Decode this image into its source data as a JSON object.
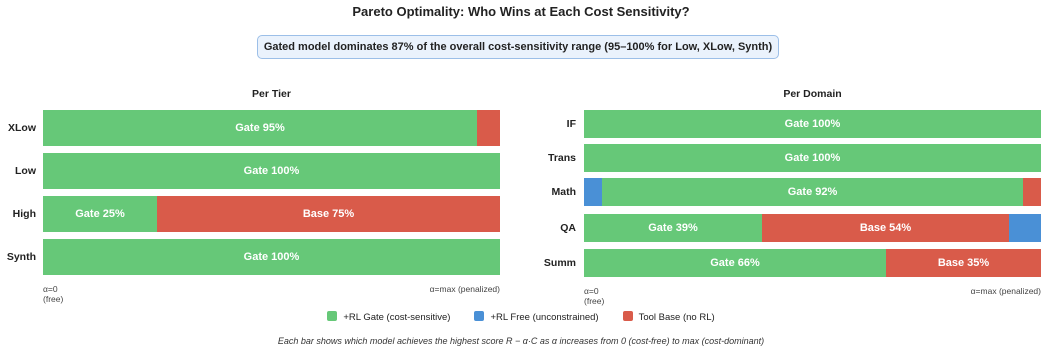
{
  "title": "Pareto Optimality: Who Wins at Each Cost Sensitivity?",
  "banner": "Gated model dominates 87% of the overall cost-sensitivity range (95–100% for Low, XLow, Synth)",
  "colors": {
    "gate": "#66c878",
    "free": "#4a90d6",
    "base": "#d95b4a"
  },
  "legend": [
    {
      "key": "gate",
      "label": "+RL Gate (cost-sensitive)"
    },
    {
      "key": "free",
      "label": "+RL Free (unconstrained)"
    },
    {
      "key": "base",
      "label": "Tool Base (no RL)"
    }
  ],
  "caption": "Each bar shows which model achieves the highest score R − α·C as α increases from 0 (cost-free) to max (cost-dominant)",
  "chart_data": [
    {
      "type": "bar",
      "orientation": "horizontal-stacked",
      "title": "Per Tier",
      "xlabel_left": "α=0 (free)",
      "xlabel_right": "α=max (penalized)",
      "xlim": [
        0,
        100
      ],
      "categories": [
        "XLow",
        "Low",
        "High",
        "Synth"
      ],
      "bars": [
        {
          "category": "XLow",
          "segments": [
            {
              "model": "gate",
              "value": 95,
              "label": "Gate 95%"
            },
            {
              "model": "base",
              "value": 5,
              "label": ""
            }
          ]
        },
        {
          "category": "Low",
          "segments": [
            {
              "model": "gate",
              "value": 100,
              "label": "Gate 100%"
            }
          ]
        },
        {
          "category": "High",
          "segments": [
            {
              "model": "gate",
              "value": 25,
              "label": "Gate 25%"
            },
            {
              "model": "base",
              "value": 75,
              "label": "Base 75%"
            }
          ]
        },
        {
          "category": "Synth",
          "segments": [
            {
              "model": "gate",
              "value": 100,
              "label": "Gate 100%"
            }
          ]
        }
      ]
    },
    {
      "type": "bar",
      "orientation": "horizontal-stacked",
      "title": "Per Domain",
      "xlabel_left": "α=0 (free)",
      "xlabel_right": "α=max (penalized)",
      "xlim": [
        0,
        100
      ],
      "categories": [
        "IF",
        "Trans",
        "Math",
        "QA",
        "Summ"
      ],
      "bars": [
        {
          "category": "IF",
          "segments": [
            {
              "model": "gate",
              "value": 100,
              "label": "Gate 100%"
            }
          ]
        },
        {
          "category": "Trans",
          "segments": [
            {
              "model": "gate",
              "value": 100,
              "label": "Gate 100%"
            }
          ]
        },
        {
          "category": "Math",
          "segments": [
            {
              "model": "free",
              "value": 4,
              "label": ""
            },
            {
              "model": "gate",
              "value": 92,
              "label": "Gate 92%"
            },
            {
              "model": "base",
              "value": 4,
              "label": ""
            }
          ]
        },
        {
          "category": "QA",
          "segments": [
            {
              "model": "gate",
              "value": 39,
              "label": "Gate 39%"
            },
            {
              "model": "base",
              "value": 54,
              "label": "Base 54%"
            },
            {
              "model": "free",
              "value": 7,
              "label": ""
            }
          ]
        },
        {
          "category": "Summ",
          "segments": [
            {
              "model": "gate",
              "value": 66,
              "label": "Gate 66%"
            },
            {
              "model": "base",
              "value": 35,
              "label": "Base 35%"
            }
          ]
        }
      ]
    }
  ]
}
